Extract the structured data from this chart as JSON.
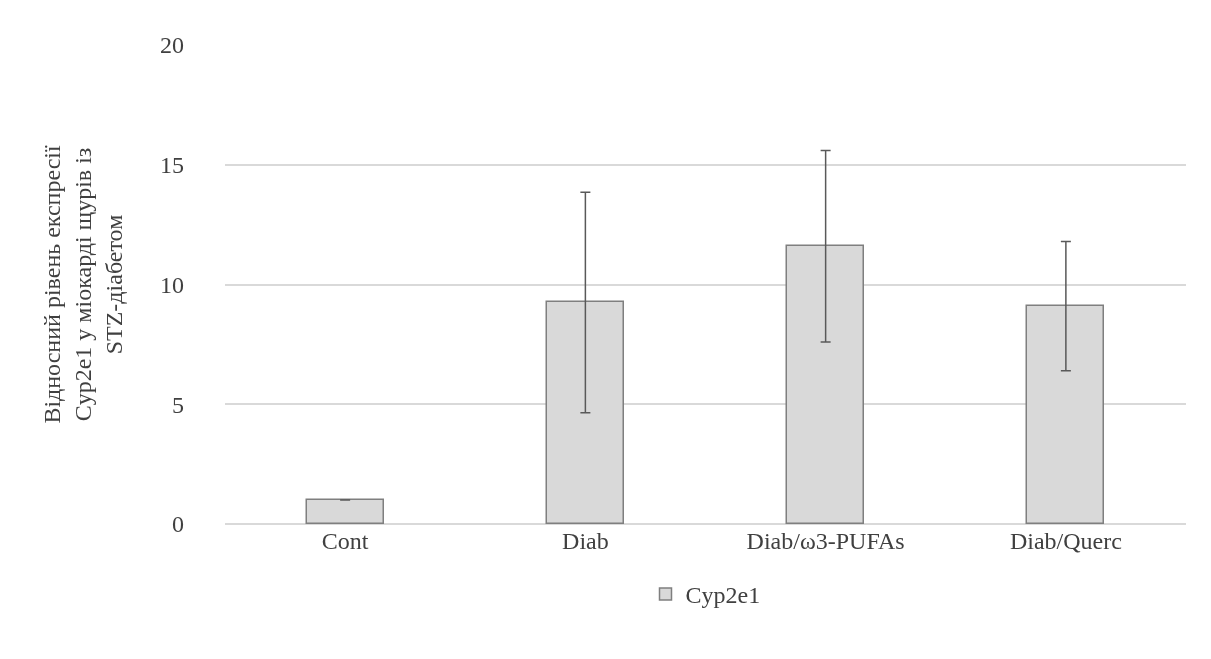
{
  "chart_data": {
    "type": "bar",
    "ylabel": "Відносний рівень експресії Cyp2e1 у міокарді щурів із STZ-діабетом",
    "categories": [
      "Cont",
      "Diab",
      "Diab/ω3-PUFAs",
      "Diab/Querc"
    ],
    "series": [
      {
        "name": "Cyp2e1",
        "color": "#d9d9d9",
        "values": [
          1.0,
          9.25,
          11.6,
          9.1
        ],
        "errors": [
          null,
          4.6,
          4.0,
          2.7
        ]
      }
    ],
    "ylim": [
      0,
      20
    ],
    "yticks": [
      0,
      5,
      10,
      15,
      20
    ],
    "grid": "y",
    "legend": "bottom"
  }
}
